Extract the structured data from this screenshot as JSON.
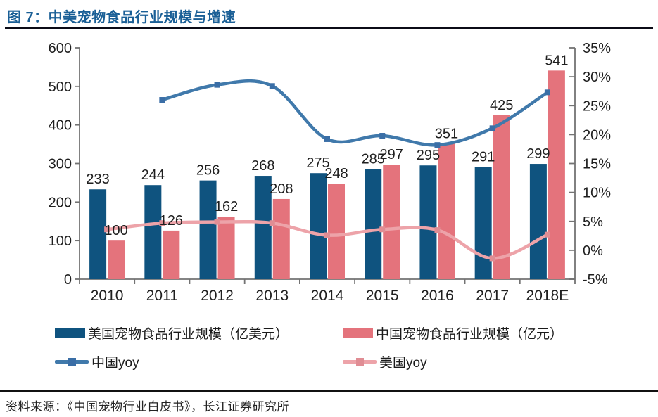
{
  "header": {
    "title": "图 7：中美宠物食品行业规模与增速"
  },
  "footer": {
    "source": "资料来源：《中国宠物行业白皮书》，长江证券研究所"
  },
  "colors": {
    "title_blue": "#1a5f96",
    "us_bar": "#0f537f",
    "cn_bar": "#e4737c",
    "cn_line": "#4079ab",
    "cn_marker": "#3a6ea6",
    "us_line": "#eda3a9",
    "us_marker": "#e08d94",
    "axis_gray": "#737373",
    "label_black": "#1f1f1f"
  },
  "chart_data": {
    "type": "bar",
    "subtype": "combo_bar_line_dual_axis",
    "title": "中美宠物食品行业规模与增速",
    "categories": [
      "2010",
      "2011",
      "2012",
      "2013",
      "2014",
      "2015",
      "2016",
      "2017",
      "2018E"
    ],
    "left_axis": {
      "min": 0,
      "max": 600,
      "tick_labels": [
        "0",
        "100",
        "200",
        "300",
        "400",
        "500",
        "600"
      ]
    },
    "right_axis": {
      "min": -5,
      "max": 35,
      "tick_labels": [
        "-5%",
        "0%",
        "5%",
        "10%",
        "15%",
        "20%",
        "25%",
        "30%",
        "35%"
      ]
    },
    "bar_series": [
      {
        "name": "美国宠物食品行业规模（亿美元）",
        "axis": "left",
        "color": "#0f537f",
        "values": [
          233,
          244,
          256,
          268,
          275,
          285,
          295,
          291,
          299
        ]
      },
      {
        "name": "中国宠物食品行业规模（亿元）",
        "axis": "left",
        "color": "#e4737c",
        "values": [
          100,
          126,
          162,
          208,
          248,
          297,
          351,
          425,
          541
        ]
      }
    ],
    "line_series": [
      {
        "name": "中国yoy",
        "axis": "right",
        "color": "#4079ab",
        "marker_color": "#3a6ea6",
        "values": [
          null,
          26.0,
          28.6,
          28.4,
          19.2,
          19.8,
          18.2,
          21.1,
          27.3
        ]
      },
      {
        "name": "美国yoy",
        "axis": "right",
        "color": "#eda3a9",
        "marker_color": "#e08d94",
        "values": [
          3.6,
          4.7,
          4.9,
          4.7,
          2.6,
          3.6,
          3.5,
          -1.4,
          2.7
        ]
      }
    ],
    "show_bar_labels": true,
    "legend_position": "bottom",
    "grid": false
  }
}
